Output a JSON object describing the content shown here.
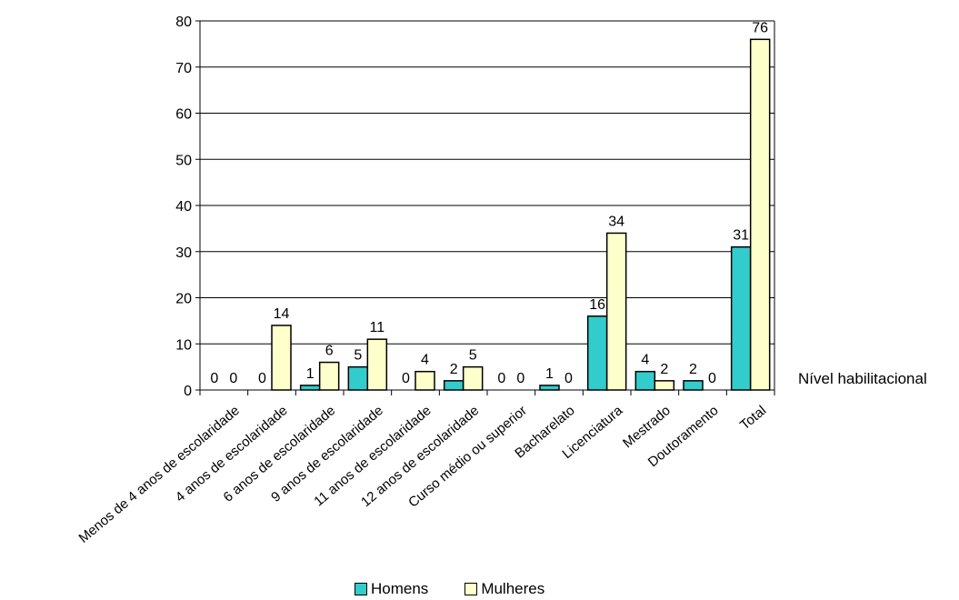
{
  "chart_data": {
    "type": "bar",
    "categories": [
      "Menos de 4 anos de escolaridade",
      "4 anos de escolaridade",
      "6 anos de escolaridade",
      "9 anos de escolaridade",
      "11 anos de escolaridade",
      "12 anos de escolaridade",
      "Curso médio ou superior",
      "Bacharelato",
      "Licenciatura",
      "Mestrado",
      "Doutoramento",
      "Total"
    ],
    "series": [
      {
        "name": "Homens",
        "color": "#33CCCC",
        "values": [
          0,
          0,
          1,
          5,
          0,
          2,
          0,
          1,
          16,
          4,
          2,
          31
        ]
      },
      {
        "name": "Mulheres",
        "color": "#FFFFCC",
        "values": [
          0,
          14,
          6,
          11,
          4,
          5,
          0,
          0,
          34,
          2,
          0,
          76
        ]
      }
    ],
    "xlabel": "Nível habilitacional",
    "ylabel": "",
    "ylim": [
      0,
      80
    ],
    "yticks": [
      0,
      10,
      20,
      30,
      40,
      50,
      60,
      70,
      80
    ],
    "grid": true,
    "legend_position": "bottom"
  }
}
